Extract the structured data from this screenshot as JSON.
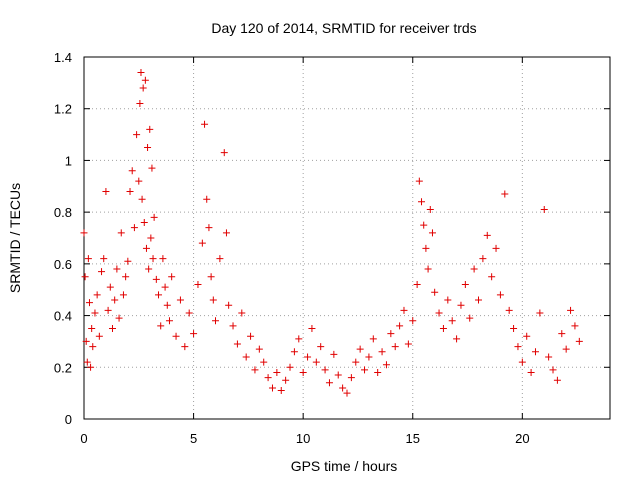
{
  "chart_data": {
    "type": "scatter",
    "title": "Day 120 of 2014, SRMTID for receiver trds",
    "xlabel": "GPS time / hours",
    "ylabel": "SRMTID / TECUs",
    "xlim": [
      0,
      24
    ],
    "ylim": [
      0,
      1.4
    ],
    "xticks": [
      0,
      5,
      10,
      15,
      20
    ],
    "xtick_labels": [
      "0",
      "5",
      "10",
      "15",
      "20"
    ],
    "yticks": [
      0,
      0.2,
      0.4,
      0.6,
      0.8,
      1.0,
      1.2,
      1.4
    ],
    "ytick_labels": [
      "0",
      "0.2",
      "0.4",
      "0.6",
      "0.8",
      "1",
      "1.2",
      "1.4"
    ],
    "grid": true,
    "marker": "+",
    "color": "#e00000",
    "series": [
      {
        "name": "SRMTID",
        "x": [
          0.0,
          0.05,
          0.1,
          0.15,
          0.2,
          0.25,
          0.3,
          0.35,
          0.4,
          0.5,
          0.6,
          0.7,
          0.8,
          0.9,
          1.0,
          1.1,
          1.2,
          1.3,
          1.4,
          1.5,
          1.6,
          1.7,
          1.8,
          1.9,
          2.0,
          2.1,
          2.2,
          2.3,
          2.4,
          2.5,
          2.55,
          2.6,
          2.65,
          2.7,
          2.75,
          2.8,
          2.85,
          2.9,
          2.95,
          3.0,
          3.05,
          3.1,
          3.15,
          3.2,
          3.3,
          3.4,
          3.5,
          3.6,
          3.7,
          3.8,
          3.9,
          4.0,
          4.2,
          4.4,
          4.6,
          4.8,
          5.0,
          5.2,
          5.4,
          5.5,
          5.6,
          5.7,
          5.8,
          5.9,
          6.0,
          6.2,
          6.4,
          6.5,
          6.6,
          6.8,
          7.0,
          7.2,
          7.4,
          7.6,
          7.8,
          8.0,
          8.2,
          8.4,
          8.6,
          8.8,
          9.0,
          9.2,
          9.4,
          9.6,
          9.8,
          10.0,
          10.2,
          10.4,
          10.6,
          10.8,
          11.0,
          11.2,
          11.4,
          11.6,
          11.8,
          12.0,
          12.2,
          12.4,
          12.6,
          12.8,
          13.0,
          13.2,
          13.4,
          13.6,
          13.8,
          14.0,
          14.2,
          14.4,
          14.6,
          14.8,
          15.0,
          15.2,
          15.3,
          15.4,
          15.5,
          15.6,
          15.7,
          15.8,
          15.9,
          16.0,
          16.2,
          16.4,
          16.6,
          16.8,
          17.0,
          17.2,
          17.4,
          17.6,
          17.8,
          18.0,
          18.2,
          18.4,
          18.6,
          18.8,
          19.0,
          19.2,
          19.4,
          19.6,
          19.8,
          20.0,
          20.2,
          20.4,
          20.6,
          20.8,
          21.0,
          21.2,
          21.4,
          21.6,
          21.8,
          22.0,
          22.2,
          22.4,
          22.6
        ],
        "y": [
          0.72,
          0.55,
          0.3,
          0.22,
          0.62,
          0.45,
          0.2,
          0.35,
          0.28,
          0.41,
          0.48,
          0.32,
          0.57,
          0.62,
          0.88,
          0.42,
          0.51,
          0.35,
          0.46,
          0.58,
          0.39,
          0.72,
          0.48,
          0.55,
          0.61,
          0.88,
          0.96,
          0.74,
          1.1,
          0.92,
          1.22,
          1.34,
          0.85,
          1.28,
          0.76,
          1.31,
          0.66,
          1.05,
          0.58,
          1.12,
          0.7,
          0.97,
          0.62,
          0.78,
          0.54,
          0.48,
          0.36,
          0.62,
          0.51,
          0.44,
          0.38,
          0.55,
          0.32,
          0.46,
          0.28,
          0.41,
          0.33,
          0.52,
          0.68,
          1.14,
          0.85,
          0.74,
          0.55,
          0.46,
          0.38,
          0.62,
          1.03,
          0.72,
          0.44,
          0.36,
          0.29,
          0.41,
          0.24,
          0.32,
          0.19,
          0.27,
          0.22,
          0.16,
          0.12,
          0.18,
          0.11,
          0.15,
          0.2,
          0.26,
          0.31,
          0.18,
          0.24,
          0.35,
          0.22,
          0.28,
          0.19,
          0.14,
          0.25,
          0.17,
          0.12,
          0.1,
          0.16,
          0.22,
          0.27,
          0.19,
          0.24,
          0.31,
          0.18,
          0.26,
          0.21,
          0.33,
          0.28,
          0.36,
          0.42,
          0.29,
          0.38,
          0.52,
          0.92,
          0.84,
          0.75,
          0.66,
          0.58,
          0.81,
          0.72,
          0.49,
          0.41,
          0.35,
          0.46,
          0.38,
          0.31,
          0.44,
          0.52,
          0.39,
          0.58,
          0.46,
          0.62,
          0.71,
          0.55,
          0.66,
          0.48,
          0.87,
          0.42,
          0.35,
          0.28,
          0.22,
          0.32,
          0.18,
          0.26,
          0.41,
          0.81,
          0.24,
          0.19,
          0.15,
          0.33,
          0.27,
          0.42,
          0.36,
          0.3
        ]
      }
    ]
  }
}
